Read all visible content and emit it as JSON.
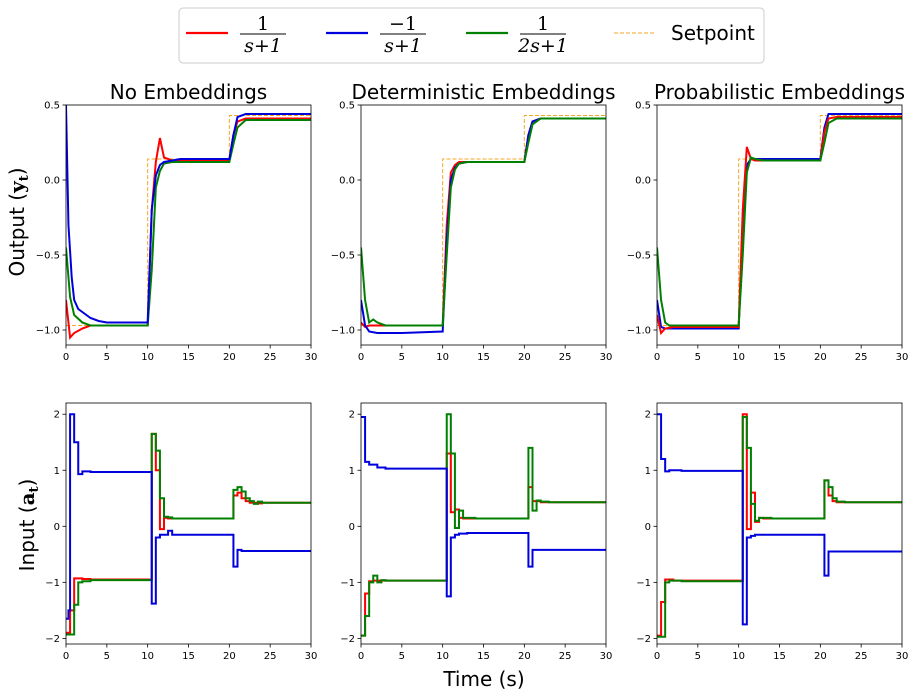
{
  "figure": {
    "xlabel": "Time (s)",
    "row_ylabels": [
      "Output (y_t)",
      "Input (a_t)"
    ]
  },
  "legend": {
    "position": "top-center",
    "entries": [
      {
        "key": "s1",
        "num": "1",
        "den": "s+1",
        "color": "#ff0000",
        "style": "solid"
      },
      {
        "key": "s2",
        "num": "−1",
        "den": "s+1",
        "color": "#0000dd",
        "style": "solid"
      },
      {
        "key": "s3",
        "num": "1",
        "den": "2s+1",
        "color": "#008000",
        "style": "solid"
      },
      {
        "key": "sp",
        "label": "Setpoint",
        "color": "#f5a623",
        "style": "dashed"
      }
    ]
  },
  "chart_data": [
    {
      "type": "line",
      "title": "No Embeddings",
      "row": 0,
      "col": 0,
      "xlim": [
        0,
        30
      ],
      "ylim": [
        -1.1,
        0.5
      ],
      "xticks": [
        0,
        5,
        10,
        15,
        20,
        25,
        30
      ],
      "yticks": [
        -1.0,
        -0.5,
        0.0,
        0.5
      ],
      "ytick_labels": [
        "−1.0",
        "−0.5",
        "0.0",
        "0.5"
      ],
      "series": [
        {
          "key": "sp",
          "x": [
            0,
            10,
            10,
            20,
            20,
            30
          ],
          "y": [
            -0.97,
            -0.97,
            0.14,
            0.14,
            0.43,
            0.43
          ]
        },
        {
          "key": "s1",
          "x": [
            0,
            0.5,
            1,
            2,
            3,
            5,
            10,
            10.5,
            11,
            11.5,
            12,
            13,
            15,
            20,
            20.5,
            21,
            22,
            25,
            30
          ],
          "y": [
            -0.8,
            -1.05,
            -1.02,
            -0.99,
            -0.97,
            -0.97,
            -0.97,
            -0.2,
            0.12,
            0.28,
            0.15,
            0.13,
            0.13,
            0.13,
            0.3,
            0.39,
            0.41,
            0.41,
            0.41
          ]
        },
        {
          "key": "s3",
          "x": [
            0,
            0.5,
            1,
            2,
            3,
            5,
            10,
            10.5,
            11,
            11.5,
            12,
            13,
            15,
            20,
            20.5,
            21,
            22,
            25,
            30
          ],
          "y": [
            -0.45,
            -0.78,
            -0.9,
            -0.95,
            -0.97,
            -0.97,
            -0.97,
            -0.6,
            -0.05,
            0.06,
            0.11,
            0.12,
            0.12,
            0.12,
            0.24,
            0.35,
            0.4,
            0.4,
            0.4
          ]
        },
        {
          "key": "s2",
          "x": [
            0,
            0.3,
            0.7,
            1,
            1.5,
            2,
            3,
            4,
            5,
            10,
            10.5,
            11,
            11.5,
            12,
            13,
            14,
            15,
            20,
            20.5,
            21,
            22,
            25,
            30
          ],
          "y": [
            0.5,
            -0.3,
            -0.65,
            -0.8,
            -0.86,
            -0.88,
            -0.92,
            -0.94,
            -0.95,
            -0.95,
            -0.2,
            0.03,
            0.1,
            0.12,
            0.13,
            0.14,
            0.14,
            0.14,
            0.3,
            0.42,
            0.44,
            0.44,
            0.44
          ]
        }
      ]
    },
    {
      "type": "line",
      "title": "Deterministic Embeddings",
      "row": 0,
      "col": 1,
      "xlim": [
        0,
        30
      ],
      "ylim": [
        -1.1,
        0.5
      ],
      "xticks": [
        0,
        5,
        10,
        15,
        20,
        25,
        30
      ],
      "yticks": [
        -1.0,
        -0.5,
        0.0,
        0.5
      ],
      "ytick_labels": [
        "−1.0",
        "−0.5",
        "0.0",
        "0.5"
      ],
      "series": [
        {
          "key": "sp",
          "x": [
            0,
            10,
            10,
            20,
            20,
            30
          ],
          "y": [
            -0.97,
            -0.97,
            0.14,
            0.14,
            0.43,
            0.43
          ]
        },
        {
          "key": "s1",
          "x": [
            0,
            0.5,
            1,
            2,
            3,
            5,
            10,
            10.5,
            11,
            11.5,
            12,
            13,
            15,
            20,
            20.5,
            21,
            22,
            25,
            30
          ],
          "y": [
            -0.95,
            -0.98,
            -0.97,
            -0.97,
            -0.97,
            -0.97,
            -0.97,
            -0.3,
            0.05,
            0.1,
            0.12,
            0.12,
            0.12,
            0.12,
            0.3,
            0.39,
            0.41,
            0.41,
            0.41
          ]
        },
        {
          "key": "s2",
          "x": [
            0,
            0.5,
            1,
            2,
            3,
            5,
            10,
            10.5,
            11,
            11.5,
            12,
            13,
            15,
            20,
            20.5,
            21,
            22,
            25,
            30
          ],
          "y": [
            -0.8,
            -0.97,
            -1.01,
            -1.02,
            -1.02,
            -1.02,
            -1.01,
            -0.4,
            0.0,
            0.08,
            0.11,
            0.12,
            0.12,
            0.12,
            0.3,
            0.39,
            0.41,
            0.41,
            0.41
          ]
        },
        {
          "key": "s3",
          "x": [
            0,
            0.5,
            1,
            1.5,
            2,
            3,
            5,
            10,
            10.5,
            11,
            11.5,
            12,
            13,
            15,
            20,
            20.5,
            21,
            22,
            25,
            30
          ],
          "y": [
            -0.45,
            -0.8,
            -0.95,
            -0.93,
            -0.95,
            -0.97,
            -0.97,
            -0.97,
            -0.5,
            -0.05,
            0.07,
            0.11,
            0.12,
            0.12,
            0.12,
            0.25,
            0.37,
            0.41,
            0.41,
            0.41
          ]
        }
      ]
    },
    {
      "type": "line",
      "title": "Probabilistic Embeddings",
      "row": 0,
      "col": 2,
      "xlim": [
        0,
        30
      ],
      "ylim": [
        -1.1,
        0.5
      ],
      "xticks": [
        0,
        5,
        10,
        15,
        20,
        25,
        30
      ],
      "yticks": [
        -1.0,
        -0.5,
        0.0,
        0.5
      ],
      "ytick_labels": [
        "−1.0",
        "−0.5",
        "0.0",
        "0.5"
      ],
      "series": [
        {
          "key": "sp",
          "x": [
            0,
            10,
            10,
            20,
            20,
            30
          ],
          "y": [
            -0.97,
            -0.97,
            0.14,
            0.14,
            0.43,
            0.43
          ]
        },
        {
          "key": "s2",
          "x": [
            0,
            0.5,
            1,
            2,
            3,
            5,
            10,
            10.5,
            11,
            11.5,
            12,
            13,
            15,
            20,
            20.5,
            21,
            22,
            25,
            30
          ],
          "y": [
            -0.8,
            -0.98,
            -0.99,
            -0.99,
            -0.99,
            -0.99,
            -0.99,
            -0.3,
            0.1,
            0.14,
            0.14,
            0.14,
            0.14,
            0.14,
            0.35,
            0.44,
            0.44,
            0.44,
            0.44
          ]
        },
        {
          "key": "s1",
          "x": [
            0,
            0.5,
            1,
            2,
            3,
            5,
            10,
            10.5,
            11,
            11.5,
            12,
            13,
            15,
            20,
            20.5,
            21,
            22,
            25,
            30
          ],
          "y": [
            -0.9,
            -1.02,
            -0.99,
            -0.98,
            -0.98,
            -0.98,
            -0.98,
            -0.2,
            0.22,
            0.14,
            0.13,
            0.13,
            0.13,
            0.13,
            0.32,
            0.41,
            0.42,
            0.42,
            0.42
          ]
        },
        {
          "key": "s3",
          "x": [
            0,
            0.5,
            1,
            1.5,
            2,
            3,
            5,
            10,
            10.5,
            11,
            11.5,
            12,
            13,
            15,
            20,
            20.5,
            21,
            22,
            25,
            30
          ],
          "y": [
            -0.45,
            -0.8,
            -0.95,
            -0.97,
            -0.97,
            -0.97,
            -0.97,
            -0.97,
            -0.5,
            0.05,
            0.15,
            0.14,
            0.13,
            0.13,
            0.13,
            0.25,
            0.38,
            0.41,
            0.41,
            0.41
          ]
        }
      ]
    },
    {
      "type": "line",
      "title": "",
      "row": 1,
      "col": 0,
      "step": true,
      "xlim": [
        0,
        30
      ],
      "ylim": [
        -2.1,
        2.2
      ],
      "xticks": [
        0,
        5,
        10,
        15,
        20,
        25,
        30
      ],
      "yticks": [
        -2,
        -1,
        0,
        1,
        2
      ],
      "ytick_labels": [
        "−2",
        "−1",
        "0",
        "1",
        "2"
      ],
      "series": [
        {
          "key": "s1",
          "x": [
            0,
            0.5,
            1,
            1.5,
            2,
            3,
            10.5,
            11,
            11.5,
            12,
            12.5,
            13,
            14,
            20.5,
            21,
            21.5,
            22,
            22.5,
            23,
            23.5,
            24,
            25,
            30
          ],
          "y": [
            -1.9,
            -1.5,
            -0.93,
            -0.93,
            -0.94,
            -0.95,
            1.65,
            1.0,
            -0.05,
            0.15,
            0.14,
            0.14,
            0.14,
            0.55,
            0.6,
            0.5,
            0.45,
            0.42,
            0.42,
            0.41,
            0.42,
            0.42,
            0.42
          ]
        },
        {
          "key": "s3",
          "x": [
            0,
            0.5,
            1,
            1.5,
            2,
            3,
            10.5,
            11,
            11.5,
            12,
            12.5,
            13,
            14,
            20.5,
            21,
            21.5,
            22,
            22.5,
            23,
            23.5,
            24,
            25,
            30
          ],
          "y": [
            -1.93,
            -1.93,
            -1.4,
            -1.0,
            -0.98,
            -0.96,
            1.65,
            1.35,
            0.5,
            0.17,
            0.16,
            0.14,
            0.14,
            0.65,
            0.7,
            0.62,
            0.5,
            0.45,
            0.4,
            0.44,
            0.42,
            0.42,
            0.42
          ]
        },
        {
          "key": "s2",
          "x": [
            0,
            0.3,
            0.5,
            1,
            1.5,
            2,
            3,
            10.5,
            11,
            11.5,
            12,
            12.5,
            13,
            13.5,
            14,
            20.5,
            21,
            21.5,
            22,
            25,
            30
          ],
          "y": [
            -1.65,
            -1.5,
            2.0,
            1.5,
            0.93,
            0.98,
            0.97,
            -1.38,
            -0.2,
            -0.15,
            -0.15,
            -0.08,
            -0.15,
            -0.15,
            -0.15,
            -0.72,
            -0.42,
            -0.44,
            -0.44,
            -0.44,
            -0.44
          ]
        }
      ]
    },
    {
      "type": "line",
      "title": "",
      "row": 1,
      "col": 1,
      "step": true,
      "xlim": [
        0,
        30
      ],
      "ylim": [
        -2.1,
        2.2
      ],
      "xticks": [
        0,
        5,
        10,
        15,
        20,
        25,
        30
      ],
      "yticks": [
        -2,
        -1,
        0,
        1,
        2
      ],
      "ytick_labels": [
        "−2",
        "−1",
        "0",
        "1",
        "2"
      ],
      "series": [
        {
          "key": "s1",
          "x": [
            0,
            0.5,
            1,
            1.5,
            2,
            3,
            10.5,
            11,
            11.5,
            12,
            12.5,
            13,
            14,
            20.5,
            21,
            21.5,
            22,
            23,
            25,
            30
          ],
          "y": [
            -1.95,
            -1.2,
            -0.98,
            -0.97,
            -0.97,
            -0.97,
            1.3,
            0.25,
            0.3,
            0.15,
            0.14,
            0.14,
            0.14,
            0.7,
            0.45,
            0.45,
            0.43,
            0.43,
            0.43,
            0.43
          ]
        },
        {
          "key": "s3",
          "x": [
            0,
            0.5,
            1,
            1.5,
            2,
            2.5,
            3,
            10.5,
            11,
            11.5,
            12,
            12.5,
            13,
            14,
            20.5,
            21,
            21.5,
            22,
            23,
            25,
            30
          ],
          "y": [
            -1.95,
            -1.6,
            -1.0,
            -0.88,
            -1.0,
            -0.96,
            -0.97,
            2.0,
            1.3,
            -0.03,
            0.28,
            0.15,
            0.15,
            0.14,
            1.4,
            0.28,
            0.46,
            0.44,
            0.43,
            0.43,
            0.43
          ]
        },
        {
          "key": "s2",
          "x": [
            0,
            0.5,
            1,
            2,
            3,
            10.5,
            11,
            11.5,
            12,
            13,
            14,
            20.5,
            21,
            22,
            25,
            30
          ],
          "y": [
            1.95,
            1.15,
            1.1,
            1.05,
            1.03,
            -1.25,
            -0.2,
            -0.15,
            -0.13,
            -0.12,
            -0.12,
            -0.72,
            -0.42,
            -0.42,
            -0.42,
            -0.42
          ]
        }
      ]
    },
    {
      "type": "line",
      "title": "",
      "row": 1,
      "col": 2,
      "step": true,
      "xlim": [
        0,
        30
      ],
      "ylim": [
        -2.1,
        2.2
      ],
      "xticks": [
        0,
        5,
        10,
        15,
        20,
        25,
        30
      ],
      "yticks": [
        -2,
        -1,
        0,
        1,
        2
      ],
      "ytick_labels": [
        "−2",
        "−1",
        "0",
        "1",
        "2"
      ],
      "series": [
        {
          "key": "s1",
          "x": [
            0,
            0.5,
            1,
            1.5,
            2,
            3,
            10.5,
            11,
            11.5,
            12,
            12.5,
            13,
            14,
            20.5,
            21,
            21.5,
            22,
            23,
            25,
            30
          ],
          "y": [
            -1.95,
            -1.35,
            -0.95,
            -0.95,
            -0.97,
            -0.97,
            2.0,
            -0.05,
            0.6,
            0.08,
            0.15,
            0.14,
            0.14,
            0.82,
            0.55,
            0.45,
            0.43,
            0.43,
            0.43,
            0.43
          ]
        },
        {
          "key": "s3",
          "x": [
            0,
            0.5,
            1,
            1.5,
            2,
            3,
            10.5,
            11,
            11.5,
            12,
            12.5,
            13,
            14,
            20.5,
            21,
            21.5,
            22,
            23,
            25,
            30
          ],
          "y": [
            -1.97,
            -1.97,
            -1.0,
            -0.97,
            -0.97,
            -0.98,
            1.95,
            1.4,
            0.4,
            0.1,
            0.15,
            0.15,
            0.14,
            0.82,
            0.7,
            0.5,
            0.44,
            0.43,
            0.43,
            0.43
          ]
        },
        {
          "key": "s2",
          "x": [
            0,
            0.5,
            1,
            1.5,
            2,
            3,
            10.5,
            11,
            11.5,
            12,
            13,
            14,
            20.5,
            21,
            22,
            25,
            30
          ],
          "y": [
            2.0,
            1.2,
            0.98,
            1.0,
            1.0,
            0.99,
            -1.75,
            -0.2,
            -0.17,
            -0.15,
            -0.15,
            -0.15,
            -0.88,
            -0.45,
            -0.45,
            -0.45,
            -0.45
          ]
        }
      ]
    }
  ]
}
